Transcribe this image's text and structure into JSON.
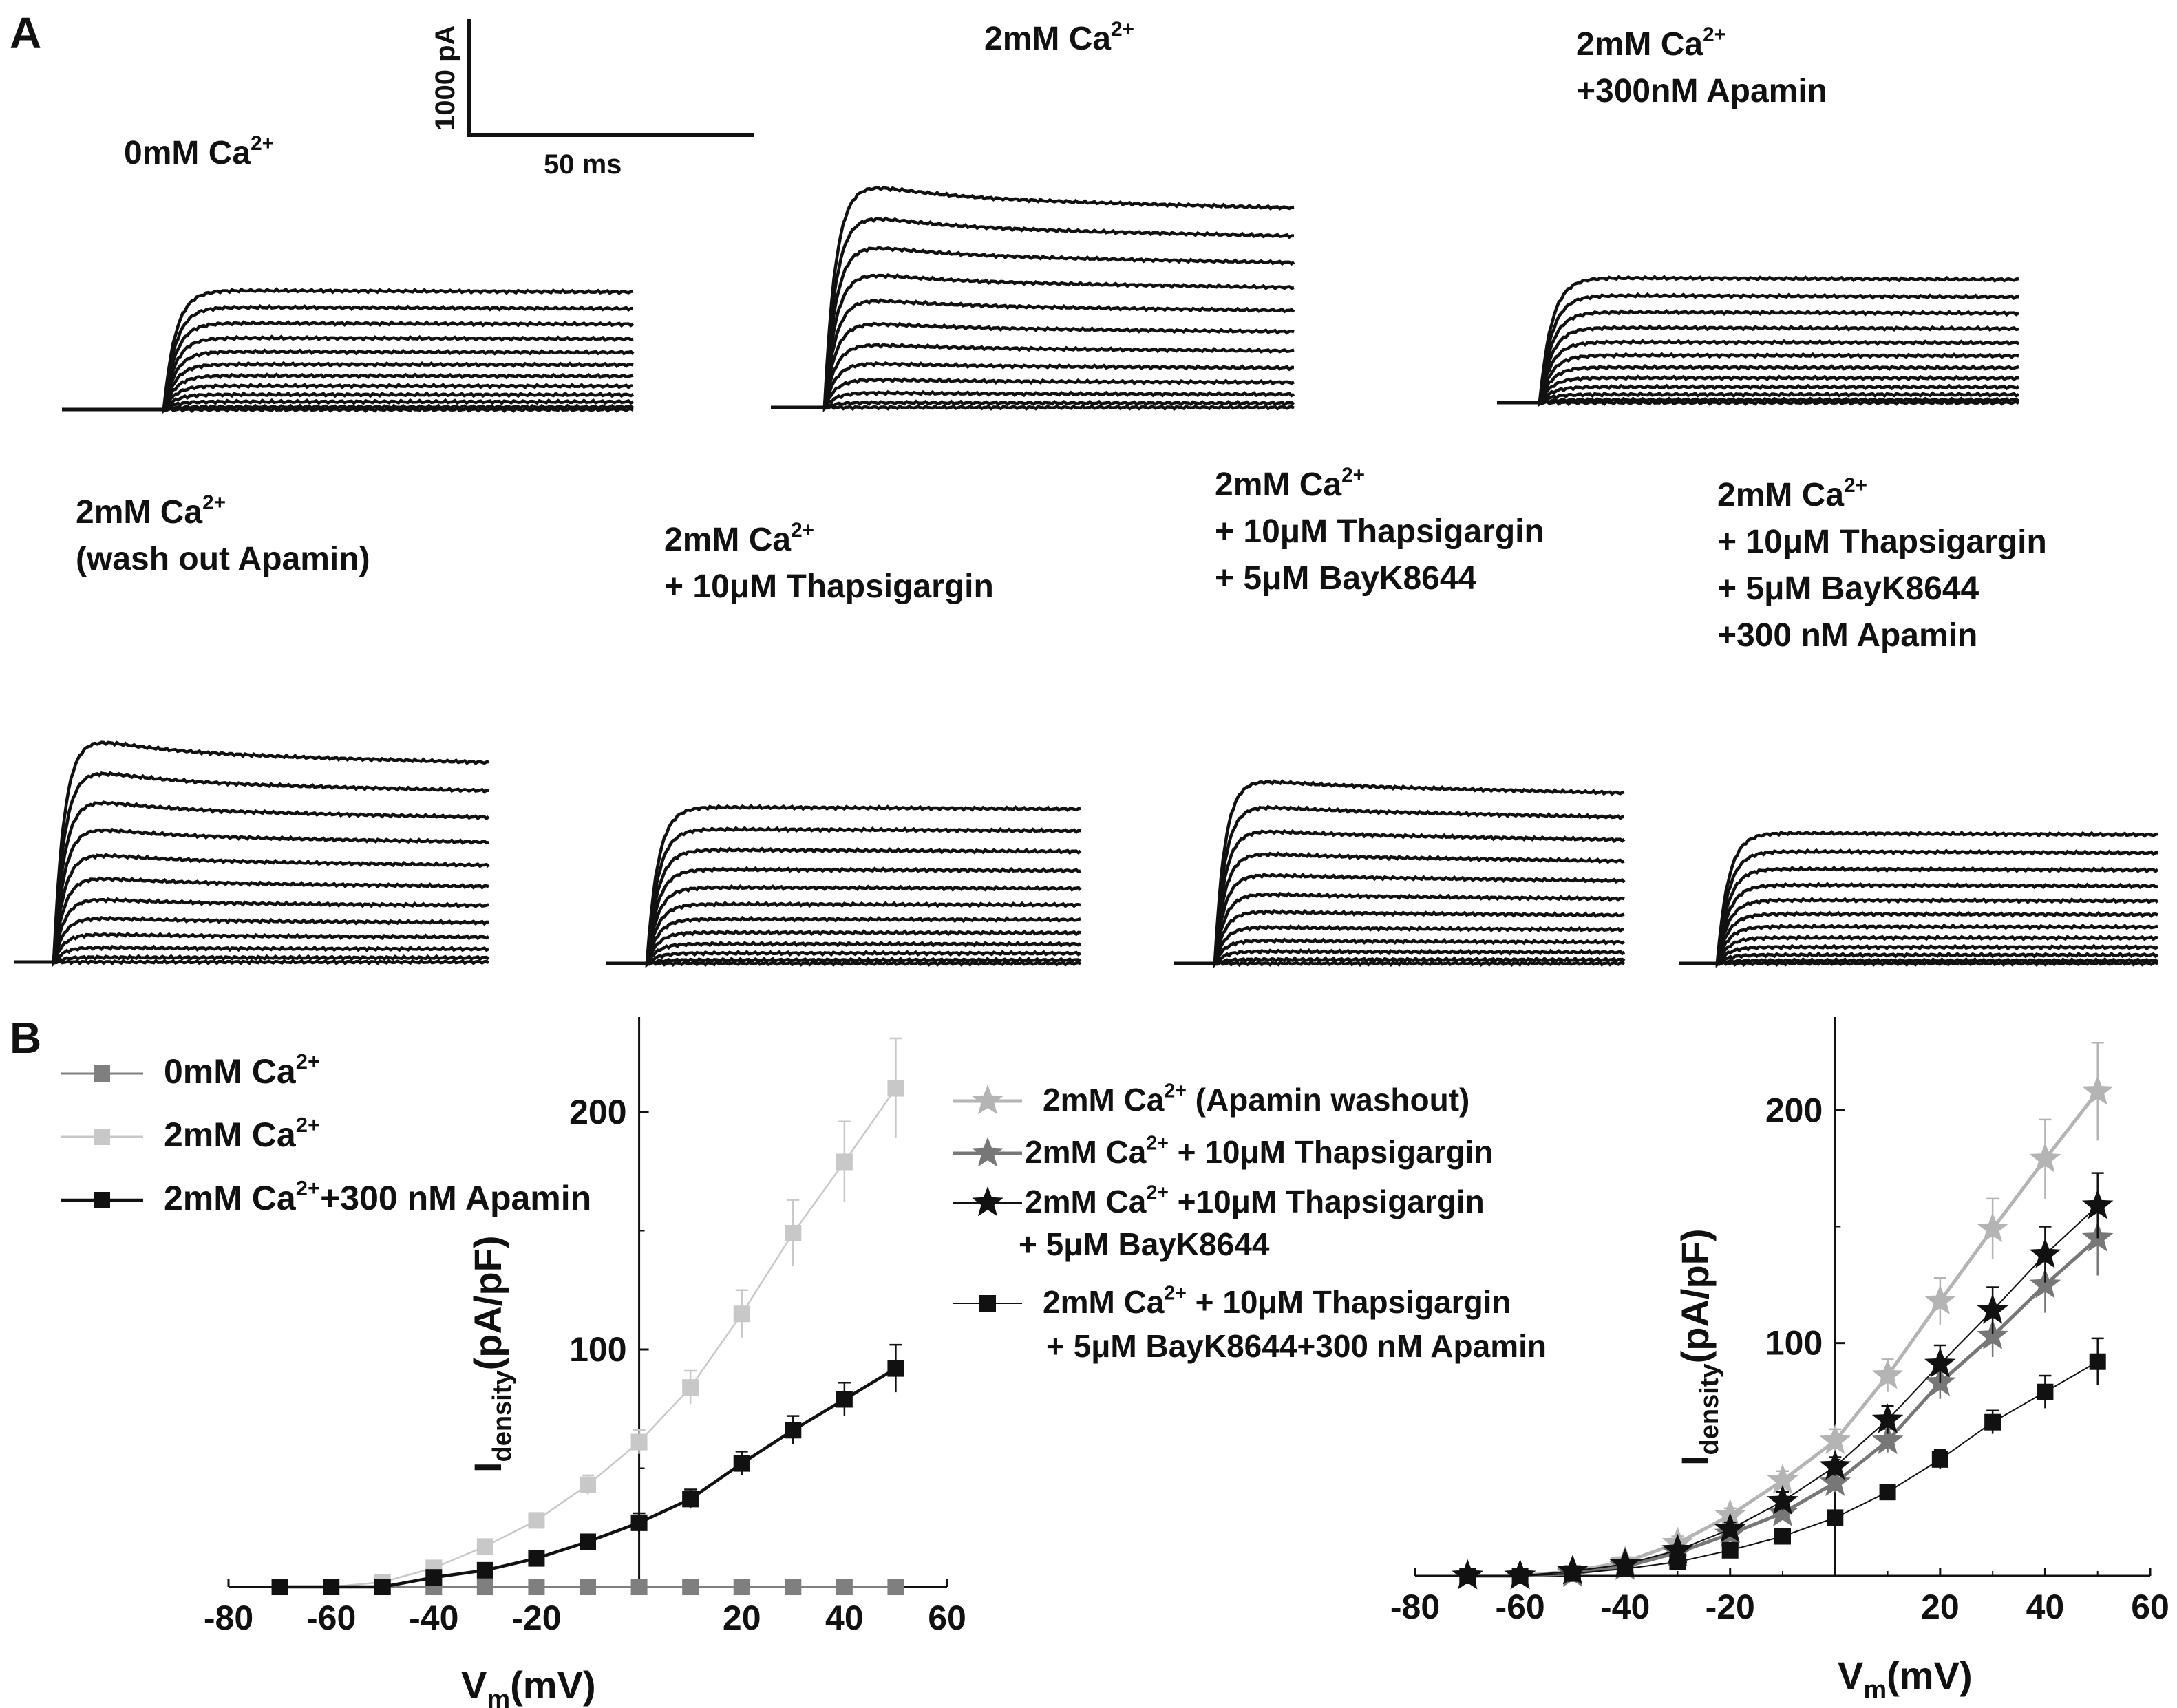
{
  "panel_labels": {
    "a": "A",
    "b": "B"
  },
  "scale_bar": {
    "current_label": "1000 pA",
    "time_label": "50 ms"
  },
  "traces": {
    "panels": [
      {
        "lines": [
          "0mM Ca",
          "2+"
        ],
        "amplitude_pA": 1050,
        "peak_ratio": 1.0,
        "n_sweeps": 12
      },
      {
        "lines": [
          "2mM Ca",
          "2+"
        ],
        "amplitude_pA": 1850,
        "peak_ratio": 1.12,
        "n_sweeps": 12
      },
      {
        "lines": [
          "2mM Ca",
          "2+",
          "+300nM Apamin"
        ],
        "amplitude_pA": 1100,
        "peak_ratio": 1.0,
        "n_sweeps": 12
      },
      {
        "lines": [
          "2mM Ca",
          "2+",
          "(wash out Apamin)"
        ],
        "amplitude_pA": 1850,
        "peak_ratio": 1.12,
        "n_sweeps": 12
      },
      {
        "lines": [
          "2mM Ca",
          "2+",
          "+ 10μM Thapsigargin"
        ],
        "amplitude_pA": 1380,
        "peak_ratio": 1.0,
        "n_sweeps": 12
      },
      {
        "lines": [
          "2mM Ca",
          "2+",
          "+ 10μM Thapsigargin",
          "+ 5μM BayK8644"
        ],
        "amplitude_pA": 1580,
        "peak_ratio": 1.05,
        "n_sweeps": 12
      },
      {
        "lines": [
          "2mM Ca",
          "2+",
          "+ 10μM Thapsigargin",
          "+ 5μM BayK8644",
          "+300 nM Apamin"
        ],
        "amplitude_pA": 1150,
        "peak_ratio": 1.0,
        "n_sweeps": 12
      }
    ]
  },
  "chart_data": [
    {
      "type": "line",
      "xlabel": "V",
      "xlabel_sub": "m",
      "xlabel_unit": "(mV)",
      "ylabel": "I",
      "ylabel_sub": "density",
      "ylabel_unit": "(pA/pF)",
      "xlim": [
        -80,
        60
      ],
      "ylim": [
        0,
        240
      ],
      "x_ticks": [
        -80,
        -60,
        -40,
        -20,
        20,
        40,
        60
      ],
      "y_ticks": [
        100,
        200
      ],
      "x": [
        -70,
        -60,
        -50,
        -40,
        -30,
        -20,
        -10,
        0,
        10,
        20,
        30,
        40,
        50
      ],
      "series": [
        {
          "name": "0mM Ca",
          "sup": "2+",
          "color": "#7f7f7f",
          "marker": "square",
          "values": [
            0,
            0,
            0,
            0,
            0,
            0,
            0,
            0,
            0,
            0,
            0,
            0,
            0
          ],
          "error": []
        },
        {
          "name": "2mM Ca",
          "sup": "2+",
          "color": "#c8c8c8",
          "marker": "square",
          "values": [
            0,
            0,
            2,
            8,
            17,
            28,
            43,
            61,
            84,
            115,
            149,
            179,
            210
          ],
          "error": [
            0,
            0,
            1,
            2,
            3,
            3,
            4,
            5,
            7,
            10,
            14,
            17,
            21
          ]
        },
        {
          "name": "2mM Ca",
          "sup": "2+",
          "name2": "+300 nM Apamin",
          "color": "#111111",
          "marker": "square",
          "values": [
            0,
            0,
            0,
            4,
            7,
            12,
            19,
            27,
            37,
            52,
            66,
            79,
            92
          ],
          "error": [
            0,
            0,
            0,
            1,
            2,
            2,
            3,
            4,
            4,
            5,
            6,
            7,
            10
          ]
        }
      ],
      "legend_position": "top-left"
    },
    {
      "type": "line",
      "xlabel": "V",
      "xlabel_sub": "m",
      "xlabel_unit": "(mV)",
      "ylabel": "I",
      "ylabel_sub": "density",
      "ylabel_unit": "(pA/pF)",
      "xlim": [
        -80,
        60
      ],
      "ylim": [
        0,
        240
      ],
      "x_ticks": [
        -80,
        -60,
        -40,
        -20,
        20,
        40,
        60
      ],
      "y_ticks": [
        100,
        200
      ],
      "x": [
        -70,
        -60,
        -50,
        -40,
        -30,
        -20,
        -10,
        0,
        10,
        20,
        30,
        40,
        50
      ],
      "series": [
        {
          "name": "2mM Ca",
          "sup": "2+",
          "name2": " (Apamin washout)",
          "color": "#b4b4b4",
          "marker": "star",
          "line_width": 5,
          "values": [
            0,
            0,
            2,
            6,
            14,
            26,
            41,
            58,
            86,
            118,
            149,
            179,
            208
          ],
          "error": [
            0,
            0,
            1,
            2,
            3,
            3,
            4,
            5,
            7,
            10,
            13,
            17,
            21
          ]
        },
        {
          "name": "2mM Ca",
          "sup": "2+",
          "name2": " + 10μM Thapsigargin",
          "color": "#777777",
          "marker": "star",
          "line_width": 5,
          "values": [
            0,
            0,
            1,
            4,
            10,
            18,
            27,
            40,
            58,
            83,
            103,
            125,
            145
          ],
          "error": [
            0,
            0,
            1,
            1,
            2,
            3,
            3,
            4,
            5,
            7,
            9,
            12,
            16
          ]
        },
        {
          "name": "2mM Ca",
          "sup": "2+",
          "name2": " +10μM Thapsigargin",
          "name3": "+ 5μM  BayK8644",
          "color": "#111111",
          "marker": "star",
          "line_width": 2,
          "values": [
            0,
            0,
            2,
            5,
            11,
            20,
            32,
            47,
            67,
            91,
            114,
            138,
            159
          ],
          "error": [
            0,
            0,
            1,
            2,
            2,
            3,
            4,
            4,
            6,
            8,
            10,
            12,
            14
          ]
        },
        {
          "name": "2mM Ca",
          "sup": "2+",
          "name2": " + 10μM  Thapsigargin",
          "name3": "+ 5μM  BayK8644+300 nM Apamin",
          "color": "#111111",
          "marker": "square",
          "line_width": 2,
          "values": [
            0,
            0,
            1,
            3,
            6,
            11,
            17,
            25,
            36,
            50,
            66,
            79,
            92
          ],
          "error": [
            0,
            0,
            0,
            1,
            1,
            2,
            2,
            3,
            3,
            4,
            5,
            7,
            10
          ]
        }
      ],
      "legend_position": "top-center"
    }
  ]
}
